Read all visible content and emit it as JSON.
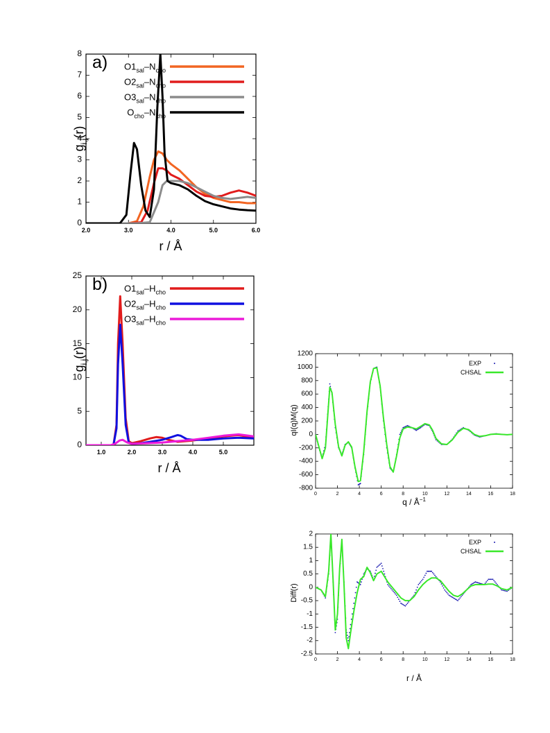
{
  "chart_data": [
    {
      "id": "panel-a",
      "type": "line",
      "panel_label": "a)",
      "xlabel": "r / Å",
      "ylabel_main": "g",
      "ylabel_sub": "i,j",
      "ylabel_tail": "(r)",
      "xlim": [
        2.0,
        6.0
      ],
      "ylim": [
        0,
        8
      ],
      "xticks": [
        2.0,
        3.0,
        4.0,
        5.0,
        6.0
      ],
      "xtick_labels": [
        "2.0",
        "3.0",
        "4.0",
        "5.0",
        "6.0"
      ],
      "yticks": [
        0,
        1,
        2,
        3,
        4,
        5,
        6,
        7,
        8
      ],
      "ytick_labels": [
        "0",
        "1",
        "2",
        "3",
        "4",
        "5",
        "6",
        "7",
        "8"
      ],
      "legend_position": "top-right",
      "series": [
        {
          "name_main": "O1",
          "name_sub1": "sal",
          "name_mid": "–N",
          "name_sub2": "cho",
          "color": "#f26522",
          "x": [
            2.0,
            3.0,
            3.2,
            3.35,
            3.5,
            3.6,
            3.7,
            3.8,
            3.9,
            4.0,
            4.2,
            4.4,
            4.6,
            4.8,
            5.0,
            5.2,
            5.4,
            5.6,
            5.8,
            6.0
          ],
          "y": [
            0,
            0,
            0.1,
            0.8,
            2.2,
            3.0,
            3.4,
            3.3,
            3.0,
            2.8,
            2.5,
            2.1,
            1.7,
            1.4,
            1.2,
            1.1,
            1.0,
            1.0,
            0.95,
            0.95
          ]
        },
        {
          "name_main": "O2",
          "name_sub1": "sal",
          "name_mid": "–N",
          "name_sub2": "cho",
          "color": "#e11c1c",
          "x": [
            2.0,
            3.0,
            3.3,
            3.45,
            3.6,
            3.7,
            3.8,
            3.9,
            4.0,
            4.2,
            4.4,
            4.6,
            4.8,
            5.0,
            5.2,
            5.4,
            5.6,
            5.8,
            6.0
          ],
          "y": [
            0,
            0,
            0.05,
            0.6,
            1.9,
            2.6,
            2.6,
            2.5,
            2.3,
            2.1,
            1.8,
            1.5,
            1.3,
            1.25,
            1.3,
            1.45,
            1.55,
            1.45,
            1.3
          ]
        },
        {
          "name_main": "O3",
          "name_sub1": "sal",
          "name_mid": "–N",
          "name_sub2": "cho",
          "color": "#8c8c8c",
          "x": [
            2.0,
            3.2,
            3.5,
            3.7,
            3.8,
            3.9,
            4.0,
            4.2,
            4.4,
            4.6,
            4.8,
            5.0,
            5.2,
            5.4,
            5.6,
            5.8,
            6.0
          ],
          "y": [
            0,
            0,
            0.05,
            1.0,
            1.8,
            2.0,
            2.0,
            2.0,
            1.9,
            1.7,
            1.5,
            1.3,
            1.2,
            1.15,
            1.2,
            1.25,
            1.2
          ]
        },
        {
          "name_main": "O",
          "name_sub1": "cho",
          "name_mid": "–N",
          "name_sub2": "cho",
          "color": "#000000",
          "x": [
            2.0,
            2.8,
            2.95,
            3.05,
            3.13,
            3.2,
            3.3,
            3.4,
            3.5,
            3.6,
            3.68,
            3.75,
            3.8,
            3.85,
            3.92,
            4.0,
            4.2,
            4.4,
            4.6,
            4.8,
            5.0,
            5.2,
            5.4,
            5.6,
            5.8,
            6.0
          ],
          "y": [
            0,
            0,
            0.4,
            2.4,
            3.8,
            3.5,
            1.8,
            0.6,
            0.3,
            1.6,
            5.5,
            8.0,
            6.0,
            3.3,
            2.0,
            1.9,
            1.8,
            1.6,
            1.3,
            1.05,
            0.9,
            0.8,
            0.7,
            0.65,
            0.62,
            0.6
          ]
        }
      ]
    },
    {
      "id": "panel-b",
      "type": "line",
      "panel_label": "b)",
      "xlabel": "r / Å",
      "ylabel_main": "g",
      "ylabel_sub": "i,j",
      "ylabel_tail": "(r)",
      "xlim": [
        0.5,
        6.0
      ],
      "ylim": [
        0,
        25
      ],
      "xticks": [
        1.0,
        2.0,
        3.0,
        4.0,
        5.0
      ],
      "xtick_labels": [
        "1.0",
        "2.0",
        "3.0",
        "4.0",
        "5.0"
      ],
      "yticks": [
        0,
        5,
        10,
        15,
        20,
        25
      ],
      "ytick_labels": [
        "0",
        "5",
        "10",
        "15",
        "20",
        "25"
      ],
      "legend_position": "top-right",
      "series": [
        {
          "name_main": "O1",
          "name_sub1": "sal",
          "name_mid": "–H",
          "name_sub2": "cho",
          "color": "#e11c1c",
          "x": [
            0.5,
            1.4,
            1.5,
            1.55,
            1.62,
            1.7,
            1.8,
            1.9,
            2.0,
            2.3,
            2.6,
            2.8,
            3.0,
            3.2,
            3.5,
            4.0,
            4.5,
            5.0,
            5.5,
            6.0
          ],
          "y": [
            0,
            0,
            3,
            15,
            22,
            15,
            4,
            0.6,
            0.3,
            0.6,
            1.0,
            1.2,
            1.1,
            0.8,
            0.5,
            0.7,
            1.0,
            1.3,
            1.5,
            1.1
          ]
        },
        {
          "name_main": "O2",
          "name_sub1": "sal",
          "name_mid": "–H",
          "name_sub2": "cho",
          "color": "#1010e0",
          "x": [
            0.5,
            1.4,
            1.5,
            1.55,
            1.62,
            1.7,
            1.8,
            1.9,
            2.0,
            2.3,
            2.6,
            3.0,
            3.3,
            3.5,
            3.6,
            3.8,
            4.0,
            4.5,
            5.0,
            5.5,
            6.0
          ],
          "y": [
            0,
            0,
            2.5,
            12,
            17.8,
            12,
            3,
            0.4,
            0.2,
            0.3,
            0.5,
            0.8,
            1.2,
            1.5,
            1.4,
            0.9,
            0.8,
            0.8,
            1.0,
            1.1,
            1.0
          ]
        },
        {
          "name_main": "O3",
          "name_sub1": "sal",
          "name_mid": "–H",
          "name_sub2": "cho",
          "color": "#ec1ad8",
          "x": [
            0.5,
            1.3,
            1.45,
            1.6,
            1.7,
            1.85,
            2.0,
            2.5,
            3.0,
            3.5,
            4.0,
            4.5,
            5.0,
            5.5,
            6.0
          ],
          "y": [
            0,
            0,
            0.2,
            0.7,
            0.8,
            0.4,
            0.2,
            0.3,
            0.4,
            0.6,
            0.8,
            1.1,
            1.4,
            1.6,
            1.3
          ]
        }
      ]
    },
    {
      "id": "panel-c",
      "type": "line",
      "xlabel_main": "q / Å",
      "xlabel_sup": "−1",
      "ylabel": "qI(q)M(q)",
      "xlim": [
        0,
        18
      ],
      "ylim": [
        -800,
        1200
      ],
      "xticks": [
        0,
        2,
        4,
        6,
        8,
        10,
        12,
        14,
        16,
        18
      ],
      "xtick_labels": [
        "0",
        "2",
        "4",
        "6",
        "8",
        "10",
        "12",
        "14",
        "16",
        "18"
      ],
      "yticks": [
        -800,
        -600,
        -400,
        -200,
        0,
        200,
        400,
        600,
        800,
        1000,
        1200
      ],
      "ytick_labels": [
        "-800",
        "-600",
        "-400",
        "-200",
        "0",
        "200",
        "400",
        "600",
        "800",
        "1000",
        "1200"
      ],
      "legend_position": "top-right",
      "series": [
        {
          "name": "EXP",
          "style": "dots",
          "color": "#1a1ab0",
          "x": [
            0,
            0.3,
            0.6,
            0.9,
            1.1,
            1.3,
            1.5,
            1.8,
            2.1,
            2.4,
            2.7,
            3.0,
            3.3,
            3.6,
            3.9,
            4.1,
            4.4,
            4.7,
            5.0,
            5.3,
            5.6,
            5.9,
            6.2,
            6.5,
            6.8,
            7.1,
            7.4,
            7.7,
            8.0,
            8.4,
            8.8,
            9.2,
            9.6,
            10.0,
            10.4,
            10.7,
            11.0,
            11.5,
            12.0,
            12.5,
            13.0,
            13.5,
            14.0,
            14.5,
            15.0,
            15.5,
            16.0,
            16.5,
            17.0,
            17.5,
            18.0
          ],
          "y": [
            0,
            -200,
            -340,
            -150,
            300,
            750,
            600,
            100,
            -200,
            -300,
            -150,
            -120,
            -200,
            -500,
            -750,
            -730,
            -300,
            300,
            760,
            980,
            1000,
            700,
            200,
            -200,
            -500,
            -560,
            -300,
            0,
            100,
            130,
            100,
            60,
            100,
            150,
            130,
            40,
            -80,
            -150,
            -150,
            -70,
            50,
            100,
            60,
            -10,
            -40,
            -20,
            0,
            10,
            0,
            -5,
            0
          ]
        },
        {
          "name": "CHSAL",
          "style": "line",
          "color": "#39e82a",
          "x": [
            0,
            0.3,
            0.6,
            0.9,
            1.1,
            1.3,
            1.5,
            1.8,
            2.1,
            2.4,
            2.7,
            3.0,
            3.3,
            3.6,
            3.9,
            4.1,
            4.4,
            4.7,
            5.0,
            5.3,
            5.6,
            5.9,
            6.2,
            6.5,
            6.8,
            7.1,
            7.4,
            7.7,
            8.0,
            8.4,
            8.8,
            9.2,
            9.6,
            10.0,
            10.4,
            10.7,
            11.0,
            11.5,
            12.0,
            12.5,
            13.0,
            13.5,
            14.0,
            14.5,
            15.0,
            15.5,
            16.0,
            16.5,
            17.0,
            17.5,
            18.0
          ],
          "y": [
            0,
            -180,
            -360,
            -200,
            260,
            700,
            620,
            150,
            -180,
            -320,
            -160,
            -110,
            -190,
            -480,
            -700,
            -690,
            -260,
            340,
            780,
            980,
            990,
            720,
            250,
            -150,
            -480,
            -560,
            -320,
            -50,
            80,
            110,
            100,
            80,
            120,
            160,
            140,
            60,
            -60,
            -140,
            -150,
            -80,
            30,
            90,
            70,
            0,
            -30,
            -20,
            0,
            5,
            0,
            -5,
            0
          ]
        }
      ]
    },
    {
      "id": "panel-d",
      "type": "line",
      "xlabel": "r / Å",
      "ylabel": "Diff(r)",
      "xlim": [
        0,
        18
      ],
      "ylim": [
        -2.5,
        2
      ],
      "xticks": [
        0,
        2,
        4,
        6,
        8,
        10,
        12,
        14,
        16,
        18
      ],
      "xtick_labels": [
        "0",
        "2",
        "4",
        "6",
        "8",
        "10",
        "12",
        "14",
        "16",
        "18"
      ],
      "yticks": [
        -2.5,
        -2,
        -1.5,
        -1,
        -0.5,
        0,
        0.5,
        1,
        1.5,
        2
      ],
      "ytick_labels": [
        "-2.5",
        "-2",
        "-1.5",
        "-1",
        "-0.5",
        "0",
        "0.5",
        "1",
        "1.5",
        "2"
      ],
      "legend_position": "top-right",
      "series": [
        {
          "name": "EXP",
          "style": "dots",
          "color": "#1a1ab0",
          "x": [
            0,
            0.5,
            0.9,
            1.2,
            1.4,
            1.6,
            1.8,
            2.0,
            2.2,
            2.4,
            2.6,
            2.8,
            3.0,
            3.2,
            3.5,
            3.8,
            4.1,
            4.4,
            4.7,
            5.0,
            5.3,
            5.6,
            6.0,
            6.3,
            6.6,
            7.0,
            7.4,
            7.8,
            8.2,
            8.6,
            9.0,
            9.4,
            9.8,
            10.2,
            10.6,
            11.0,
            11.4,
            11.8,
            12.2,
            12.6,
            13.0,
            13.4,
            13.8,
            14.2,
            14.6,
            15.0,
            15.4,
            15.8,
            16.2,
            16.6,
            17.0,
            17.5,
            18.0
          ],
          "y": [
            0,
            -0.1,
            -0.4,
            0.5,
            1.9,
            0.2,
            -1.7,
            -1.2,
            0.6,
            1.75,
            0.2,
            -1.6,
            -2.0,
            -1.4,
            -0.6,
            0.2,
            0.1,
            0.5,
            0.7,
            0.6,
            0.3,
            0.75,
            0.9,
            0.5,
            0.1,
            -0.1,
            -0.3,
            -0.6,
            -0.7,
            -0.5,
            -0.3,
            0.1,
            0.3,
            0.6,
            0.6,
            0.4,
            0.2,
            -0.1,
            -0.3,
            -0.4,
            -0.5,
            -0.3,
            -0.1,
            0.1,
            0.2,
            0.15,
            0.1,
            0.3,
            0.3,
            0.1,
            -0.1,
            -0.15,
            0
          ]
        },
        {
          "name": "CHSAL",
          "style": "line",
          "color": "#39e82a",
          "x": [
            0,
            0.5,
            0.9,
            1.2,
            1.4,
            1.6,
            1.8,
            2.0,
            2.2,
            2.4,
            2.6,
            2.8,
            3.0,
            3.2,
            3.5,
            3.8,
            4.1,
            4.4,
            4.7,
            5.0,
            5.3,
            5.6,
            6.0,
            6.3,
            6.6,
            7.0,
            7.4,
            7.8,
            8.2,
            8.6,
            9.0,
            9.4,
            9.8,
            10.2,
            10.6,
            11.0,
            11.4,
            11.8,
            12.2,
            12.6,
            13.0,
            13.4,
            13.8,
            14.2,
            14.6,
            15.0,
            15.4,
            15.8,
            16.2,
            16.6,
            17.0,
            17.5,
            18.0
          ],
          "y": [
            0,
            -0.1,
            -0.35,
            0.6,
            2.0,
            0.3,
            -1.6,
            -1.0,
            0.7,
            1.8,
            0.1,
            -1.9,
            -2.3,
            -1.7,
            -0.9,
            -0.2,
            0.3,
            0.4,
            0.75,
            0.55,
            0.25,
            0.5,
            0.6,
            0.4,
            0.2,
            0,
            -0.2,
            -0.4,
            -0.5,
            -0.5,
            -0.35,
            -0.1,
            0.1,
            0.25,
            0.35,
            0.35,
            0.25,
            0.05,
            -0.15,
            -0.3,
            -0.35,
            -0.25,
            -0.1,
            0.05,
            0.1,
            0.1,
            0.1,
            0.12,
            0.12,
            0.05,
            -0.05,
            -0.1,
            0
          ]
        }
      ]
    }
  ]
}
